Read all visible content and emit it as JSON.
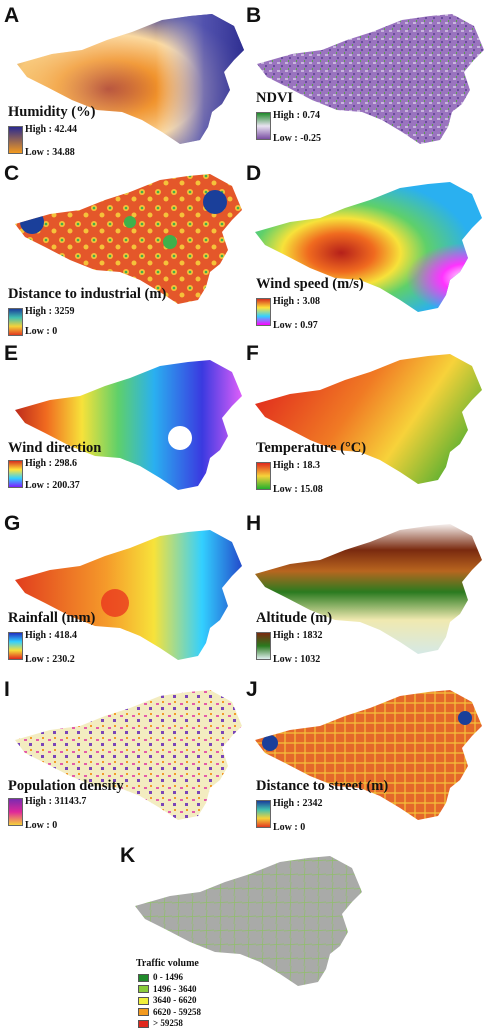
{
  "panels": [
    {
      "letter": "A",
      "title": "Humidity (%)",
      "high": "High : 42.44",
      "low": "Low : 34.88",
      "grad": [
        "#2a2a8f",
        "#f39a1f"
      ]
    },
    {
      "letter": "B",
      "title": "NDVI",
      "high": "High : 0.74",
      "low": "Low : -0.25",
      "grad": [
        "#1f8a2a",
        "#7b4fa3"
      ]
    },
    {
      "letter": "C",
      "title": "Distance to industrial (m)",
      "high": "High : 3259",
      "low": "Low : 0",
      "grad": [
        "#1a3f9a",
        "#41c0b0",
        "#f5d23a",
        "#e23a1f"
      ]
    },
    {
      "letter": "D",
      "title": "Wind speed (m/s)",
      "high": "High : 3.08",
      "low": "Low : 0.97",
      "grad": [
        "#d62f1e",
        "#ffe33a",
        "#33d0ff",
        "#ff00ff"
      ]
    },
    {
      "letter": "E",
      "title": "Wind direction",
      "high": "High : 298.6",
      "low": "Low : 200.37",
      "grad": [
        "#d62f1e",
        "#ffe33a",
        "#33d0ff",
        "#7a1fff"
      ]
    },
    {
      "letter": "F",
      "title": "Temperature (°C)",
      "high": "High : 18.3",
      "low": "Low : 15.08",
      "grad": [
        "#e0281d",
        "#f7d23a",
        "#23b02e"
      ]
    },
    {
      "letter": "G",
      "title": "Rainfall (mm)",
      "high": "High : 418.4",
      "low": "Low : 230.2",
      "grad": [
        "#2030c0",
        "#33d0ff",
        "#f5e03a",
        "#e0281d"
      ]
    },
    {
      "letter": "H",
      "title": "Altitude (m)",
      "high": "High : 1832",
      "low": "Low : 1032",
      "grad": [
        "#7a2a0f",
        "#2a7a1f",
        "#dfeeee"
      ]
    },
    {
      "letter": "I",
      "title": "Population density",
      "high": "High : 31143.7",
      "low": "Low : 0",
      "grad": [
        "#7a2ab0",
        "#e0289a",
        "#f5d23a"
      ]
    },
    {
      "letter": "J",
      "title": "Distance to street (m)",
      "high": "High : 2342",
      "low": "Low : 0",
      "grad": [
        "#1a3f9a",
        "#41c0b0",
        "#f5d23a",
        "#e23a1f"
      ]
    }
  ],
  "traffic": {
    "letter": "K",
    "title": "Traffic volume",
    "classes": [
      {
        "label": "0 - 1496",
        "color": "#1f8a2a"
      },
      {
        "label": "1496 - 3640",
        "color": "#8acb3a"
      },
      {
        "label": "3640 - 6620",
        "color": "#f0f03a"
      },
      {
        "label": "6620 - 59258",
        "color": "#f39a1f"
      },
      {
        "label": "> 59258",
        "color": "#e0281d"
      }
    ]
  }
}
